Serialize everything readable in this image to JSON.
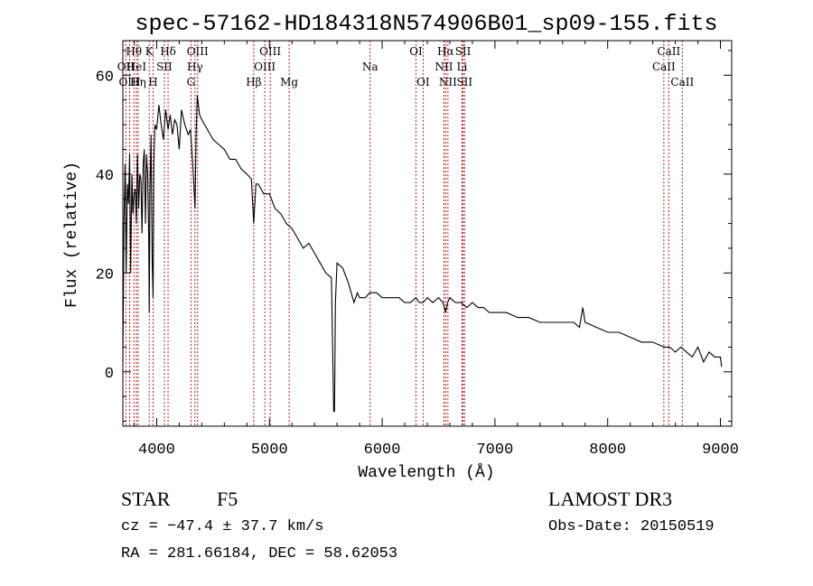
{
  "chart_data": {
    "type": "line",
    "title": "spec-57162-HD184318N574906B01_sp09-155.fits",
    "xlabel": "Wavelength (Å)",
    "ylabel": "Flux (relative)",
    "xlim": [
      3700,
      9100
    ],
    "ylim": [
      -11,
      67
    ],
    "xticks": [
      4000,
      5000,
      6000,
      7000,
      8000,
      9000
    ],
    "yticks": [
      0,
      20,
      40,
      60
    ],
    "series": [
      {
        "name": "spectrum",
        "x": [
          3700,
          3710,
          3720,
          3730,
          3740,
          3750,
          3760,
          3770,
          3780,
          3790,
          3800,
          3810,
          3820,
          3830,
          3840,
          3850,
          3860,
          3870,
          3880,
          3890,
          3900,
          3910,
          3920,
          3930,
          3934,
          3940,
          3950,
          3960,
          3968,
          3975,
          3985,
          4000,
          4020,
          4040,
          4060,
          4080,
          4101,
          4120,
          4140,
          4160,
          4180,
          4200,
          4220,
          4250,
          4280,
          4300,
          4320,
          4340,
          4350,
          4360,
          4380,
          4400,
          4450,
          4500,
          4550,
          4600,
          4650,
          4700,
          4750,
          4800,
          4840,
          4861,
          4880,
          4900,
          4950,
          5000,
          5050,
          5100,
          5150,
          5200,
          5250,
          5300,
          5350,
          5400,
          5450,
          5500,
          5550,
          5570,
          5577,
          5585,
          5600,
          5650,
          5700,
          5750,
          5780,
          5800,
          5850,
          5890,
          5920,
          5950,
          6000,
          6050,
          6100,
          6150,
          6200,
          6250,
          6300,
          6330,
          6363,
          6400,
          6450,
          6500,
          6540,
          6563,
          6580,
          6600,
          6650,
          6700,
          6750,
          6800,
          6850,
          6900,
          6950,
          7000,
          7100,
          7200,
          7300,
          7400,
          7500,
          7600,
          7700,
          7750,
          7780,
          7800,
          7900,
          8000,
          8100,
          8200,
          8300,
          8400,
          8500,
          8550,
          8600,
          8650,
          8700,
          8750,
          8800,
          8850,
          8900,
          8950,
          9000,
          9010
        ],
        "y": [
          2,
          30,
          42,
          20,
          38,
          34,
          44,
          20,
          40,
          32,
          36,
          37,
          30,
          44,
          33,
          40,
          39,
          28,
          42,
          45,
          30,
          44,
          40,
          26,
          12,
          36,
          48,
          22,
          15,
          42,
          50,
          49,
          54,
          50,
          47,
          53,
          49,
          52,
          48,
          51,
          50,
          45,
          53,
          50,
          48,
          49,
          42,
          33,
          48,
          56,
          52,
          51,
          49,
          47,
          46,
          45,
          43,
          43,
          41,
          40,
          39,
          30,
          38,
          38,
          36,
          36,
          33,
          32,
          30,
          29,
          27,
          25,
          26,
          24,
          22,
          20,
          19,
          -8,
          -8,
          14,
          22,
          21,
          18,
          14,
          16,
          15,
          15,
          16,
          16,
          16,
          15,
          15,
          15,
          15,
          14,
          14,
          15,
          14,
          14,
          15,
          14,
          15,
          14,
          12,
          14,
          15,
          14,
          14,
          13,
          14,
          13,
          13,
          12,
          12,
          12,
          11,
          11,
          10,
          10,
          10,
          10,
          9,
          13,
          10,
          9,
          8,
          8,
          7,
          6,
          6,
          5,
          5,
          4,
          5,
          4,
          3,
          5,
          2,
          4,
          3,
          3,
          1
        ]
      }
    ],
    "lines": [
      {
        "name": "OII",
        "wl": 3727,
        "row": 1
      },
      {
        "name": "Hθ",
        "wl": 3798,
        "row": 0
      },
      {
        "name": "OIII",
        "wl": 3760,
        "row": 2
      },
      {
        "name": "HeI",
        "wl": 3820,
        "row": 1
      },
      {
        "name": "Hη",
        "wl": 3835,
        "row": 2
      },
      {
        "name": "K",
        "wl": 3934,
        "row": 0
      },
      {
        "name": "SII",
        "wl": 4068,
        "row": 1
      },
      {
        "name": "H",
        "wl": 3968,
        "row": 2
      },
      {
        "name": "Hδ",
        "wl": 4101,
        "row": 0
      },
      {
        "name": "OIII",
        "wl": 4363,
        "row": 0
      },
      {
        "name": "Hγ",
        "wl": 4340,
        "row": 1
      },
      {
        "name": "G",
        "wl": 4304,
        "row": 2
      },
      {
        "name": "Hβ",
        "wl": 4861,
        "row": 2
      },
      {
        "name": "OIII",
        "wl": 5007,
        "row": 0
      },
      {
        "name": "OIII",
        "wl": 4959,
        "row": 1
      },
      {
        "name": "Mg",
        "wl": 5175,
        "row": 2
      },
      {
        "name": "Na",
        "wl": 5893,
        "row": 1
      },
      {
        "name": "OI",
        "wl": 6300,
        "row": 0
      },
      {
        "name": "OI",
        "wl": 6363,
        "row": 2
      },
      {
        "name": "Hα",
        "wl": 6563,
        "row": 0
      },
      {
        "name": "SII",
        "wl": 6717,
        "row": 0
      },
      {
        "name": "NII",
        "wl": 6548,
        "row": 1
      },
      {
        "name": "Li",
        "wl": 6708,
        "row": 1
      },
      {
        "name": "NII",
        "wl": 6583,
        "row": 2
      },
      {
        "name": "SII",
        "wl": 6731,
        "row": 2
      },
      {
        "name": "CaII",
        "wl": 8542,
        "row": 0
      },
      {
        "name": "CaII",
        "wl": 8498,
        "row": 1
      },
      {
        "name": "CaII",
        "wl": 8662,
        "row": 2
      }
    ],
    "colors": {
      "spectrum": "#000000",
      "lines": "#b22222",
      "axes": "#000000"
    }
  },
  "info": {
    "object_class": "STAR",
    "subclass": "F5",
    "survey": "LAMOST DR3",
    "redshift": "cz = −47.4 ± 37.7 km/s",
    "obs_date": "Obs-Date: 20150519",
    "coords": "RA = 281.66184, DEC =  58.62053"
  }
}
